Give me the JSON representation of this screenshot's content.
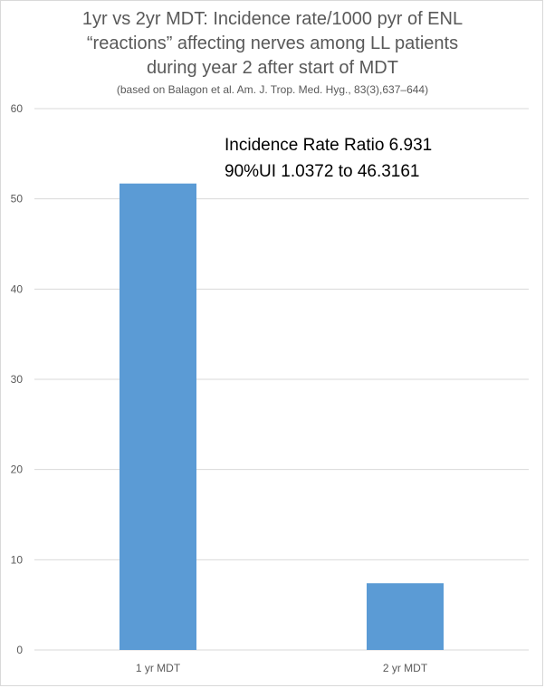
{
  "chart_data": {
    "type": "bar",
    "title_lines": [
      "1yr vs 2yr MDT: Incidence rate/1000 pyr of ENL",
      "“reactions” affecting nerves among LL patients",
      "during year 2 after start of MDT"
    ],
    "subtitle": "(based on Balagon et al. Am. J. Trop. Med. Hyg., 83(3),637–644)",
    "annotation_lines": [
      "Incidence Rate Ratio 6.931",
      "90%UI 1.0372  to 46.3161"
    ],
    "categories": [
      "1 yr MDT",
      "2 yr MDT"
    ],
    "values": [
      51.7,
      7.4
    ],
    "ylim": [
      0,
      60
    ],
    "yticks": [
      0,
      10,
      20,
      30,
      40,
      50,
      60
    ],
    "xlabel": "",
    "ylabel": "",
    "grid": true,
    "bar_color": "#5B9BD5",
    "grid_color": "#d9d9d9"
  }
}
